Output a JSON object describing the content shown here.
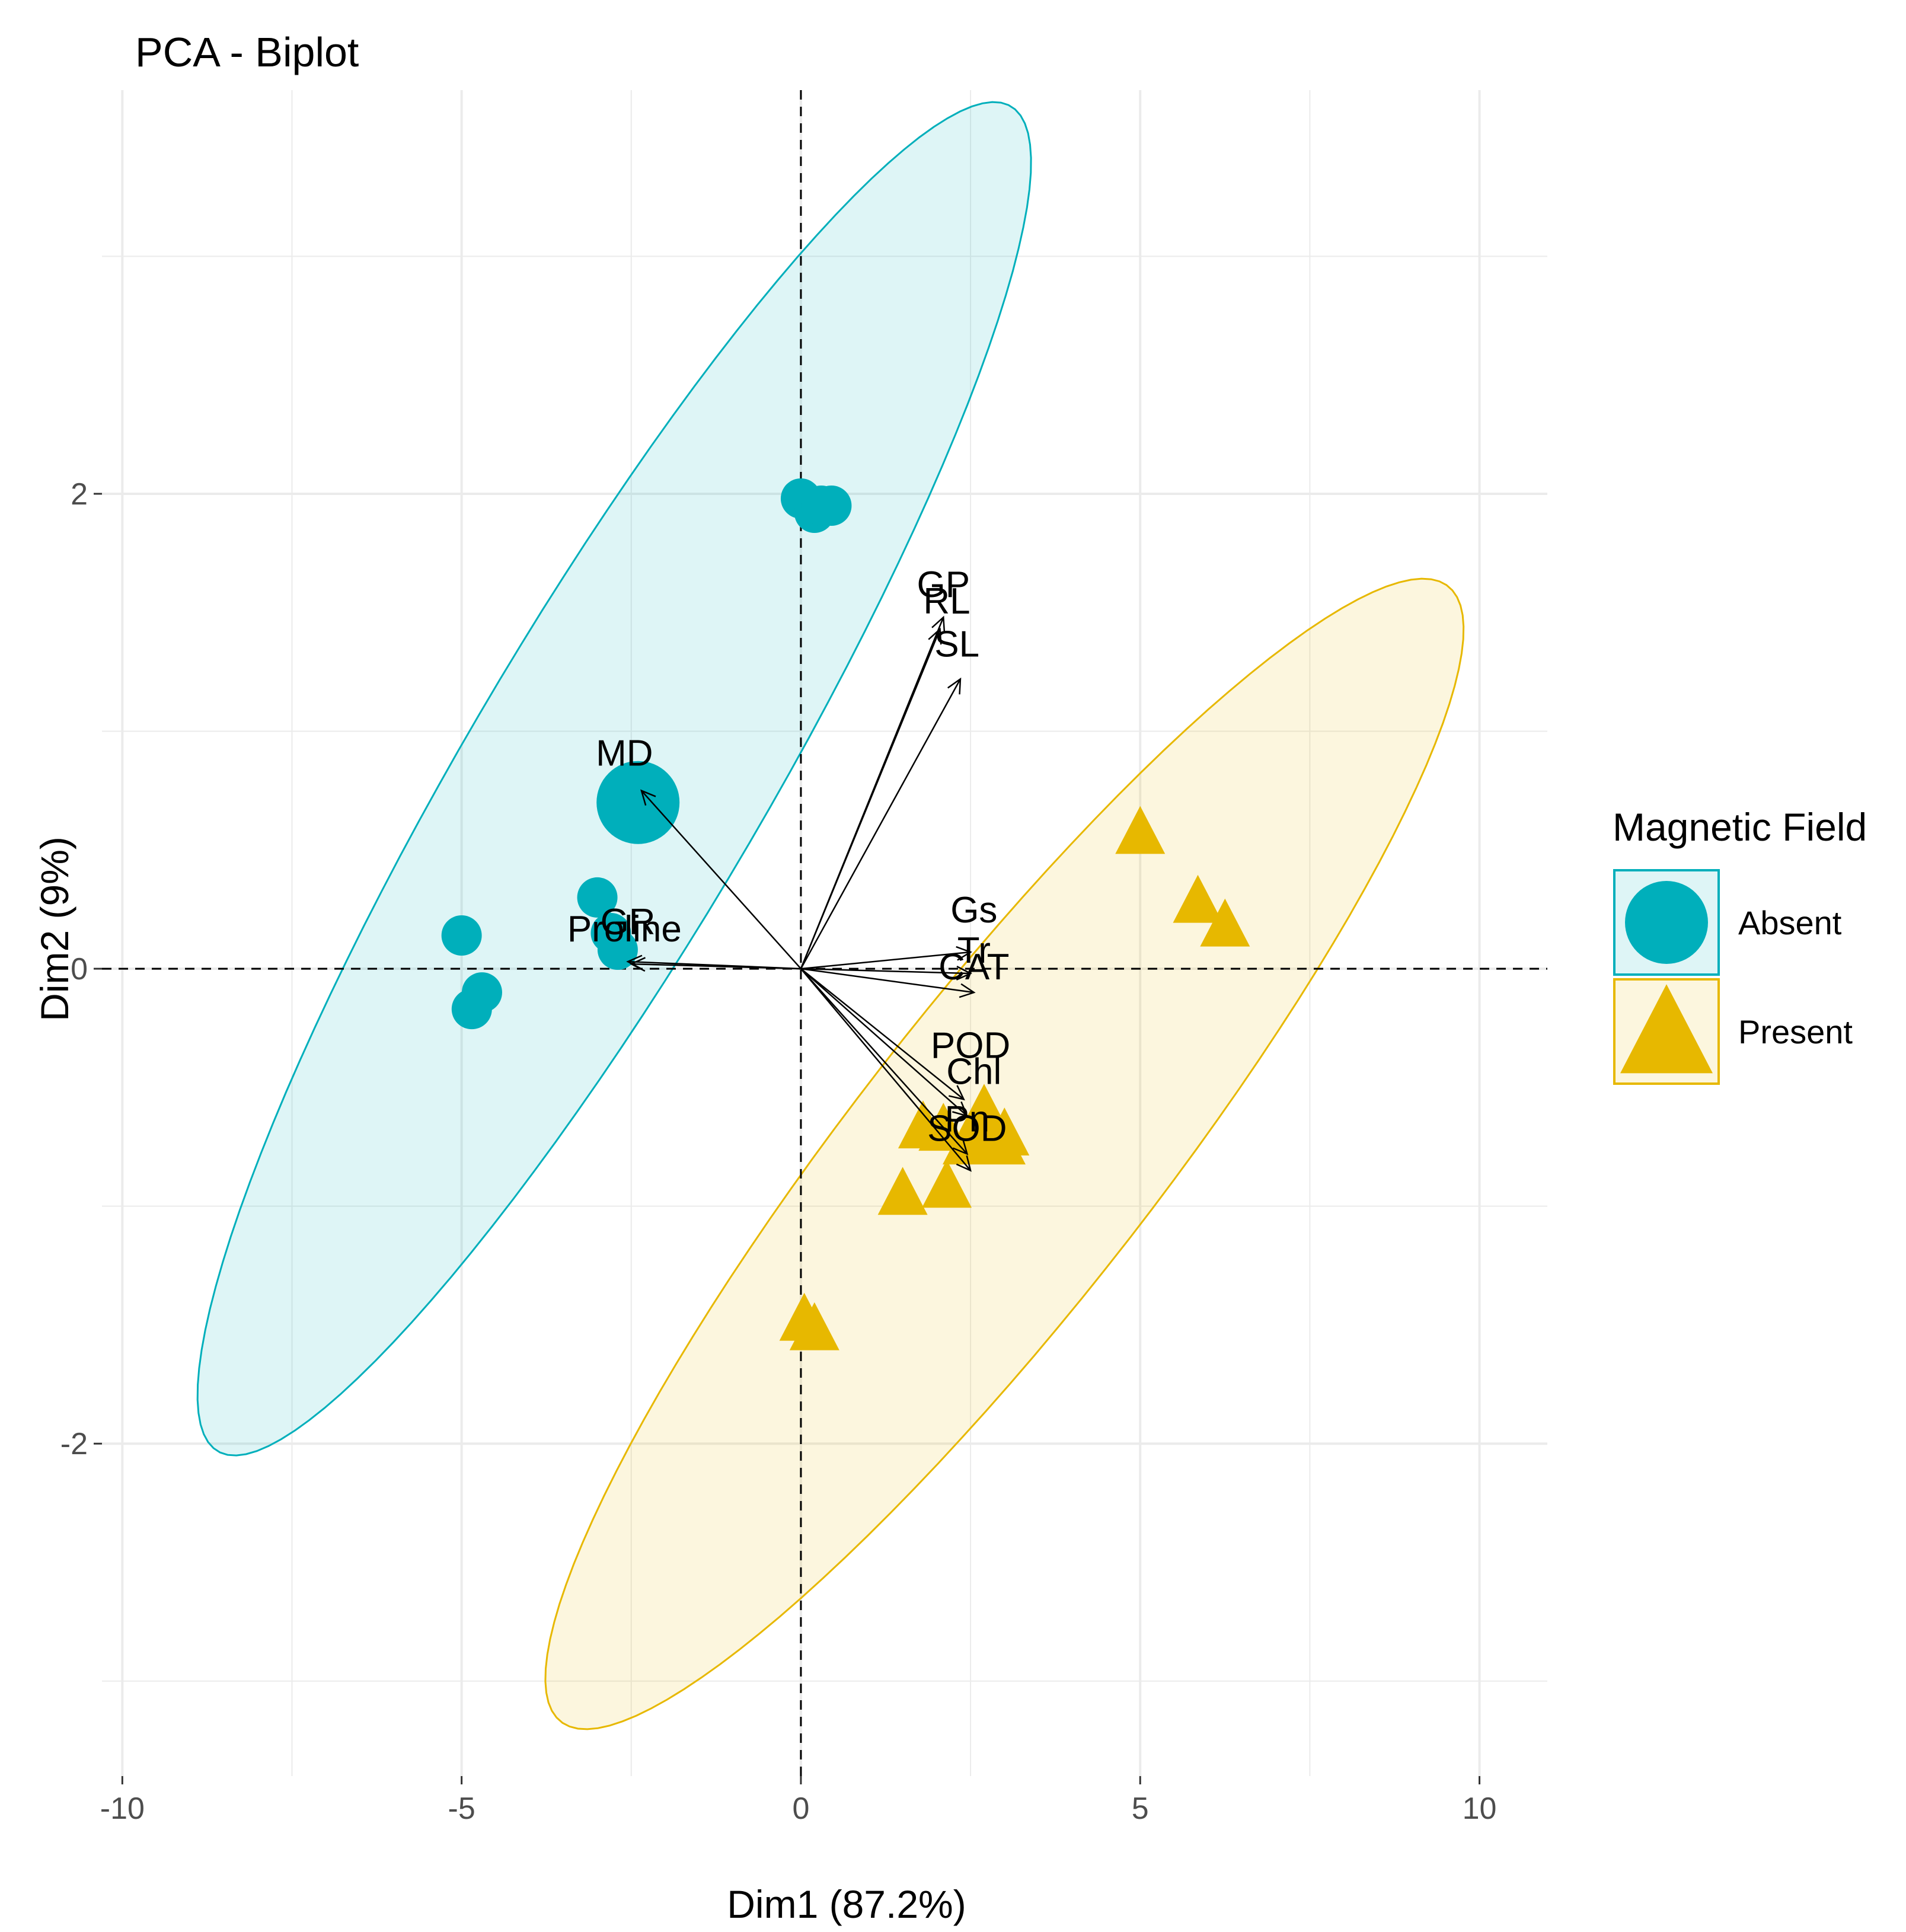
{
  "chart_data": {
    "type": "scatter",
    "title": "PCA - Biplot",
    "xlabel": "Dim1 (87.2%)",
    "ylabel": "Dim2 (9%)",
    "xlim": [
      -10.3,
      11
    ],
    "ylim": [
      -3.4,
      3.7
    ],
    "xticks": [
      -10,
      -5,
      0,
      5,
      10
    ],
    "xtick_labels": [
      "-10",
      "-5",
      "0",
      "5",
      "10"
    ],
    "yticks": [
      -2,
      0,
      2
    ],
    "ytick_labels": [
      "-2",
      "0",
      "2"
    ],
    "grid": true,
    "legend": {
      "title": "Magnetic Field",
      "position": "right"
    },
    "colors": {
      "absent": "#00AFBB",
      "present": "#E7B800"
    },
    "series": [
      {
        "name": "Absent",
        "marker": "circle",
        "points": [
          {
            "x": 0.0,
            "y": 1.98
          },
          {
            "x": 0.2,
            "y": 1.92
          },
          {
            "x": 0.45,
            "y": 1.95
          },
          {
            "x": 0.3,
            "y": 1.95
          },
          {
            "x": -3.0,
            "y": 0.3
          },
          {
            "x": -2.8,
            "y": 0.15
          },
          {
            "x": -2.7,
            "y": 0.08
          },
          {
            "x": -5.0,
            "y": 0.14
          },
          {
            "x": -4.7,
            "y": -0.1
          },
          {
            "x": -4.85,
            "y": -0.17
          }
        ],
        "centroid": {
          "x": -2.4,
          "y": 0.7
        },
        "ellipse": {
          "cx": -2.75,
          "cy": 0.8,
          "angle_deg": 56.3,
          "a_x": 6.05,
          "a_y": 2.76,
          "b_x": 1.06,
          "b_y": -0.71
        }
      },
      {
        "name": "Present",
        "marker": "triangle",
        "points": [
          {
            "x": 5.0,
            "y": 0.57
          },
          {
            "x": 5.85,
            "y": 0.28
          },
          {
            "x": 6.25,
            "y": 0.18
          },
          {
            "x": 2.7,
            "y": -0.6
          },
          {
            "x": 3.0,
            "y": -0.7
          },
          {
            "x": 1.8,
            "y": -0.67
          },
          {
            "x": 2.1,
            "y": -0.68
          },
          {
            "x": 1.5,
            "y": -0.95
          },
          {
            "x": 2.15,
            "y": -0.92
          },
          {
            "x": 0.05,
            "y": -1.48
          },
          {
            "x": 0.2,
            "y": -1.52
          }
        ],
        "centroid": {
          "x": 2.7,
          "y": -0.68
        },
        "ellipse": {
          "cx": 3.0,
          "cy": -0.78,
          "angle_deg": 50.7,
          "a_x": 6.72,
          "a_y": 2.31,
          "b_x": -0.79,
          "b_y": 0.73
        }
      }
    ],
    "variables": [
      {
        "name": "GP",
        "x": 2.1,
        "y": 1.48,
        "label_x": 2.1,
        "label_y": 1.62
      },
      {
        "name": "RL",
        "x": 2.05,
        "y": 1.43,
        "label_x": 2.15,
        "label_y": 1.55
      },
      {
        "name": "SL",
        "x": 2.35,
        "y": 1.22,
        "label_x": 2.3,
        "label_y": 1.37
      },
      {
        "name": "MD",
        "x": -2.35,
        "y": 0.75,
        "label_x": -2.6,
        "label_y": 0.91
      },
      {
        "name": "GR",
        "x": -2.55,
        "y": 0.03,
        "label_x": -2.55,
        "label_y": 0.2
      },
      {
        "name": "Proline",
        "x": -2.5,
        "y": 0.02,
        "label_x": -2.6,
        "label_y": 0.17
      },
      {
        "name": "Gs",
        "x": 2.5,
        "y": 0.07,
        "label_x": 2.55,
        "label_y": 0.25
      },
      {
        "name": "Tr",
        "x": 2.5,
        "y": -0.02,
        "label_x": 2.55,
        "label_y": 0.08
      },
      {
        "name": "CAT",
        "x": 2.55,
        "y": -0.1,
        "label_x": 2.55,
        "label_y": 0.01
      },
      {
        "name": "POD",
        "x": 2.4,
        "y": -0.55,
        "label_x": 2.5,
        "label_y": -0.32
      },
      {
        "name": "Chl",
        "x": 2.45,
        "y": -0.62,
        "label_x": 2.55,
        "label_y": -0.43
      },
      {
        "name": "Pn",
        "x": 2.45,
        "y": -0.78,
        "label_x": 2.45,
        "label_y": -0.63
      },
      {
        "name": "SOD",
        "x": 2.5,
        "y": -0.85,
        "label_x": 2.45,
        "label_y": -0.67
      }
    ]
  }
}
